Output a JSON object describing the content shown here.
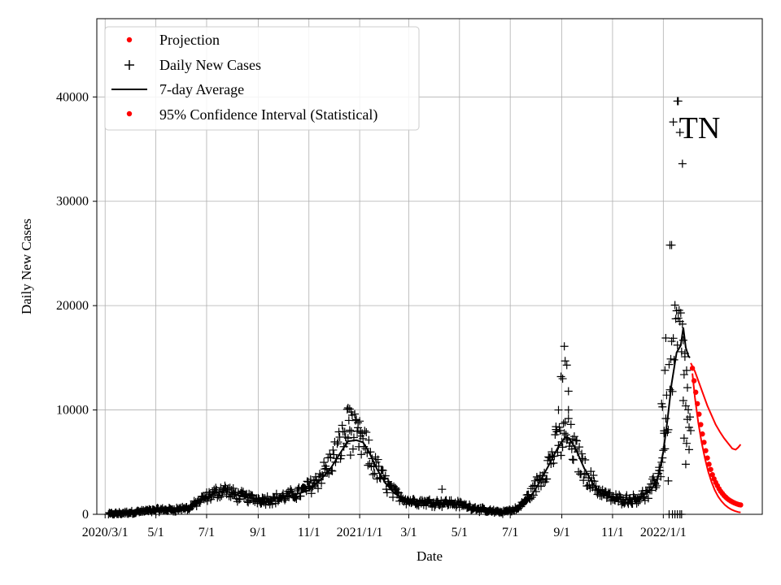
{
  "chart_data": {
    "type": "line",
    "title": "",
    "annotation": "TN",
    "xlabel": "Date",
    "ylabel": "Daily New Cases",
    "xlim": [
      "2020-02-20",
      "2022-04-30"
    ],
    "ylim": [
      0,
      47500
    ],
    "grid": true,
    "x_ticks": [
      {
        "date": "2020-03-01",
        "label": "2020/3/1"
      },
      {
        "date": "2020-05-01",
        "label": "5/1"
      },
      {
        "date": "2020-07-01",
        "label": "7/1"
      },
      {
        "date": "2020-09-01",
        "label": "9/1"
      },
      {
        "date": "2020-11-01",
        "label": "11/1"
      },
      {
        "date": "2021-01-01",
        "label": "2021/1/1"
      },
      {
        "date": "2021-03-01",
        "label": "3/1"
      },
      {
        "date": "2021-05-01",
        "label": "5/1"
      },
      {
        "date": "2021-07-01",
        "label": "7/1"
      },
      {
        "date": "2021-09-01",
        "label": "9/1"
      },
      {
        "date": "2021-11-01",
        "label": "11/1"
      },
      {
        "date": "2022-01-01",
        "label": "2022/1/1"
      }
    ],
    "y_ticks": [
      {
        "value": 0,
        "label": "0"
      },
      {
        "value": 10000,
        "label": "10000"
      },
      {
        "value": 20000,
        "label": "20000"
      },
      {
        "value": 30000,
        "label": "30000"
      },
      {
        "value": 40000,
        "label": "40000"
      }
    ],
    "legend": {
      "position": "upper-left",
      "entries": [
        {
          "label": "Projection",
          "marker": "dot",
          "color": "#ff0000"
        },
        {
          "label": "Daily New Cases",
          "marker": "plus",
          "color": "#000000"
        },
        {
          "label": "7-day Average",
          "marker": "line",
          "color": "#000000"
        },
        {
          "label": "95% Confidence Interval (Statistical)",
          "marker": "dot",
          "color": "#ff0000"
        }
      ]
    },
    "series": [
      {
        "name": "7-day Average",
        "style": "line",
        "color": "#000000",
        "points": [
          [
            "2020-03-08",
            0
          ],
          [
            "2020-03-25",
            150
          ],
          [
            "2020-04-15",
            300
          ],
          [
            "2020-05-05",
            420
          ],
          [
            "2020-05-25",
            500
          ],
          [
            "2020-06-10",
            700
          ],
          [
            "2020-06-25",
            1300
          ],
          [
            "2020-07-10",
            2000
          ],
          [
            "2020-07-22",
            2300
          ],
          [
            "2020-08-05",
            1900
          ],
          [
            "2020-08-20",
            1600
          ],
          [
            "2020-09-05",
            1400
          ],
          [
            "2020-09-20",
            1500
          ],
          [
            "2020-10-05",
            1700
          ],
          [
            "2020-10-20",
            2000
          ],
          [
            "2020-11-01",
            2300
          ],
          [
            "2020-11-15",
            3300
          ],
          [
            "2020-11-28",
            4500
          ],
          [
            "2020-12-08",
            5800
          ],
          [
            "2020-12-18",
            7000
          ],
          [
            "2020-12-28",
            7100
          ],
          [
            "2021-01-05",
            6900
          ],
          [
            "2021-01-12",
            6000
          ],
          [
            "2021-01-22",
            4300
          ],
          [
            "2021-02-01",
            3000
          ],
          [
            "2021-02-12",
            2000
          ],
          [
            "2021-02-25",
            1400
          ],
          [
            "2021-03-15",
            1200
          ],
          [
            "2021-04-01",
            1100
          ],
          [
            "2021-04-15",
            1050
          ],
          [
            "2021-05-01",
            900
          ],
          [
            "2021-05-15",
            650
          ],
          [
            "2021-06-01",
            350
          ],
          [
            "2021-06-20",
            200
          ],
          [
            "2021-07-05",
            300
          ],
          [
            "2021-07-20",
            1000
          ],
          [
            "2021-08-01",
            2500
          ],
          [
            "2021-08-15",
            4500
          ],
          [
            "2021-08-28",
            6500
          ],
          [
            "2021-09-05",
            7400
          ],
          [
            "2021-09-10",
            7300
          ],
          [
            "2021-09-18",
            6200
          ],
          [
            "2021-09-28",
            4400
          ],
          [
            "2021-10-08",
            3000
          ],
          [
            "2021-10-18",
            2000
          ],
          [
            "2021-11-01",
            1500
          ],
          [
            "2021-11-15",
            1400
          ],
          [
            "2021-11-28",
            1500
          ],
          [
            "2021-12-08",
            1800
          ],
          [
            "2021-12-18",
            2400
          ],
          [
            "2021-12-26",
            3600
          ],
          [
            "2022-01-01",
            6000
          ],
          [
            "2022-01-06",
            9000
          ],
          [
            "2022-01-11",
            12500
          ],
          [
            "2022-01-17",
            15500
          ],
          [
            "2022-01-22",
            16200
          ],
          [
            "2022-01-25",
            17900
          ],
          [
            "2022-01-28",
            16000
          ],
          [
            "2022-01-31",
            15200
          ],
          [
            "2022-02-02",
            15000
          ]
        ]
      },
      {
        "name": "Projection",
        "style": "dots",
        "color": "#ff0000",
        "points": [
          [
            "2022-02-05",
            14000
          ],
          [
            "2022-02-07",
            12800
          ],
          [
            "2022-02-09",
            11700
          ],
          [
            "2022-02-11",
            10600
          ],
          [
            "2022-02-13",
            9600
          ],
          [
            "2022-02-15",
            8600
          ],
          [
            "2022-02-17",
            7700
          ],
          [
            "2022-02-19",
            6900
          ],
          [
            "2022-02-21",
            6100
          ],
          [
            "2022-02-23",
            5400
          ],
          [
            "2022-02-25",
            4800
          ],
          [
            "2022-02-27",
            4300
          ],
          [
            "2022-03-01",
            3800
          ],
          [
            "2022-03-03",
            3400
          ],
          [
            "2022-03-05",
            3050
          ],
          [
            "2022-03-07",
            2750
          ],
          [
            "2022-03-09",
            2450
          ],
          [
            "2022-03-11",
            2200
          ],
          [
            "2022-03-13",
            2000
          ],
          [
            "2022-03-15",
            1800
          ],
          [
            "2022-03-17",
            1650
          ],
          [
            "2022-03-19",
            1500
          ],
          [
            "2022-03-21",
            1380
          ],
          [
            "2022-03-23",
            1280
          ],
          [
            "2022-03-25",
            1190
          ],
          [
            "2022-03-27",
            1110
          ],
          [
            "2022-03-29",
            1040
          ],
          [
            "2022-03-31",
            980
          ],
          [
            "2022-04-02",
            930
          ],
          [
            "2022-04-04",
            900
          ]
        ]
      },
      {
        "name": "95% CI upper",
        "style": "line",
        "color": "#ff0000",
        "points": [
          [
            "2022-02-03",
            14500
          ],
          [
            "2022-02-08",
            13700
          ],
          [
            "2022-02-13",
            12600
          ],
          [
            "2022-02-18",
            11500
          ],
          [
            "2022-02-23",
            10400
          ],
          [
            "2022-02-28",
            9500
          ],
          [
            "2022-03-05",
            8600
          ],
          [
            "2022-03-10",
            7900
          ],
          [
            "2022-03-15",
            7300
          ],
          [
            "2022-03-20",
            6800
          ],
          [
            "2022-03-25",
            6300
          ],
          [
            "2022-03-29",
            6200
          ],
          [
            "2022-04-01",
            6400
          ],
          [
            "2022-04-04",
            6700
          ]
        ]
      },
      {
        "name": "95% CI lower",
        "style": "line",
        "color": "#ff0000",
        "points": [
          [
            "2022-02-05",
            13500
          ],
          [
            "2022-02-08",
            11200
          ],
          [
            "2022-02-12",
            8800
          ],
          [
            "2022-02-16",
            6900
          ],
          [
            "2022-02-20",
            5400
          ],
          [
            "2022-02-24",
            4100
          ],
          [
            "2022-02-28",
            3100
          ],
          [
            "2022-03-04",
            2300
          ],
          [
            "2022-03-08",
            1700
          ],
          [
            "2022-03-12",
            1250
          ],
          [
            "2022-03-16",
            900
          ],
          [
            "2022-03-20",
            650
          ],
          [
            "2022-03-24",
            450
          ],
          [
            "2022-03-28",
            320
          ],
          [
            "2022-04-01",
            220
          ],
          [
            "2022-04-04",
            180
          ]
        ]
      }
    ],
    "daily_cases_anchor": [
      [
        "2020-03-05",
        0
      ],
      [
        "2020-03-20",
        100
      ],
      [
        "2020-04-10",
        250
      ],
      [
        "2020-05-01",
        400
      ],
      [
        "2020-05-20",
        450
      ],
      [
        "2020-06-10",
        600
      ],
      [
        "2020-06-25",
        1400
      ],
      [
        "2020-07-10",
        2000
      ],
      [
        "2020-07-22",
        2400
      ],
      [
        "2020-08-05",
        1800
      ],
      [
        "2020-08-25",
        1500
      ],
      [
        "2020-09-15",
        1400
      ],
      [
        "2020-10-05",
        1700
      ],
      [
        "2020-10-25",
        2200
      ],
      [
        "2020-11-10",
        3200
      ],
      [
        "2020-11-25",
        4700
      ],
      [
        "2020-12-08",
        6500
      ],
      [
        "2020-12-18",
        8200
      ],
      [
        "2020-12-25",
        7500
      ],
      [
        "2021-01-05",
        6800
      ],
      [
        "2021-01-15",
        5200
      ],
      [
        "2021-01-28",
        3500
      ],
      [
        "2021-02-10",
        2100
      ],
      [
        "2021-03-01",
        1300
      ],
      [
        "2021-03-25",
        1150
      ],
      [
        "2021-04-20",
        1100
      ],
      [
        "2021-05-10",
        800
      ],
      [
        "2021-06-01",
        350
      ],
      [
        "2021-06-20",
        200
      ],
      [
        "2021-07-10",
        500
      ],
      [
        "2021-07-28",
        2200
      ],
      [
        "2021-08-12",
        4300
      ],
      [
        "2021-08-28",
        6800
      ],
      [
        "2021-09-07",
        7600
      ],
      [
        "2021-09-18",
        5800
      ],
      [
        "2021-10-01",
        3800
      ],
      [
        "2021-10-15",
        2300
      ],
      [
        "2021-11-01",
        1500
      ],
      [
        "2021-11-25",
        1400
      ],
      [
        "2021-12-15",
        2000
      ],
      [
        "2021-12-28",
        4000
      ],
      [
        "2022-01-05",
        9000
      ],
      [
        "2022-01-12",
        15000
      ],
      [
        "2022-01-20",
        17000
      ],
      [
        "2022-01-27",
        14000
      ],
      [
        "2022-02-03",
        7000
      ]
    ],
    "daily_cases_extremes": [
      [
        "2020-12-18",
        10200
      ],
      [
        "2020-12-20",
        10100
      ],
      [
        "2020-12-22",
        9800
      ],
      [
        "2020-12-30",
        8300
      ],
      [
        "2021-01-02",
        7500
      ],
      [
        "2021-04-10",
        2400
      ],
      [
        "2021-08-25",
        8400
      ],
      [
        "2021-08-28",
        10000
      ],
      [
        "2021-08-31",
        13200
      ],
      [
        "2021-09-02",
        13000
      ],
      [
        "2021-09-04",
        16100
      ],
      [
        "2021-09-05",
        14700
      ],
      [
        "2021-09-07",
        14300
      ],
      [
        "2021-09-09",
        11800
      ],
      [
        "2021-09-09",
        10000
      ],
      [
        "2021-09-14",
        7200
      ],
      [
        "2021-12-30",
        10600
      ],
      [
        "2021-12-31",
        10300
      ],
      [
        "2022-01-02",
        8000
      ],
      [
        "2022-01-03",
        13800
      ],
      [
        "2022-01-04",
        16900
      ],
      [
        "2022-01-09",
        25800
      ],
      [
        "2022-01-11",
        25800
      ],
      [
        "2022-01-13",
        37600
      ],
      [
        "2022-01-18",
        39600
      ],
      [
        "2022-01-19",
        39600
      ],
      [
        "2022-01-24",
        33600
      ],
      [
        "2022-01-21",
        36600
      ],
      [
        "2022-01-27",
        15100
      ],
      [
        "2022-01-25",
        10900
      ],
      [
        "2022-01-30",
        9100
      ],
      [
        "2022-01-26",
        7300
      ],
      [
        "2022-01-28",
        4800
      ],
      [
        "2022-02-01",
        6200
      ],
      [
        "2022-01-29",
        6800
      ],
      [
        "2022-01-08",
        0
      ],
      [
        "2022-01-12",
        0
      ],
      [
        "2022-01-15",
        0
      ],
      [
        "2022-01-18",
        0
      ],
      [
        "2022-01-21",
        0
      ],
      [
        "2022-01-23",
        0
      ],
      [
        "2021-12-22",
        3000
      ],
      [
        "2021-12-27",
        4500
      ],
      [
        "2022-01-07",
        3200
      ]
    ]
  }
}
